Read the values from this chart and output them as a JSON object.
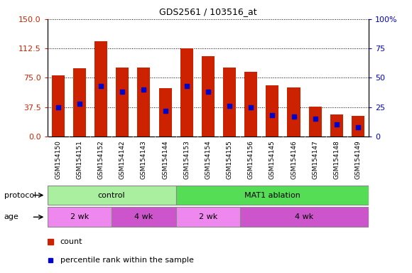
{
  "title": "GDS2561 / 103516_at",
  "samples": [
    "GSM154150",
    "GSM154151",
    "GSM154152",
    "GSM154142",
    "GSM154143",
    "GSM154144",
    "GSM154153",
    "GSM154154",
    "GSM154155",
    "GSM154156",
    "GSM154145",
    "GSM154146",
    "GSM154147",
    "GSM154148",
    "GSM154149"
  ],
  "count_values": [
    78,
    87,
    122,
    88,
    88,
    62,
    113,
    103,
    88,
    83,
    65,
    63,
    38,
    28,
    26
  ],
  "percentile_values": [
    25,
    28,
    43,
    38,
    40,
    22,
    43,
    38,
    26,
    25,
    18,
    17,
    15,
    10,
    8
  ],
  "left_ylim": [
    0,
    150
  ],
  "right_ylim": [
    0,
    100
  ],
  "left_yticks": [
    0,
    37.5,
    75,
    112.5,
    150
  ],
  "right_yticks": [
    0,
    25,
    50,
    75,
    100
  ],
  "right_yticklabels": [
    "0",
    "25",
    "50",
    "75",
    "100%"
  ],
  "bar_color": "#cc2200",
  "marker_color": "#0000cc",
  "bar_width": 0.6,
  "ctrl_color_light": "#aaeea0",
  "ctrl_color_dark": "#55dd55",
  "age_color_pink": "#ee88ee",
  "age_color_purple": "#cc55cc",
  "legend_count_label": "count",
  "legend_pct_label": "percentile rank within the sample"
}
